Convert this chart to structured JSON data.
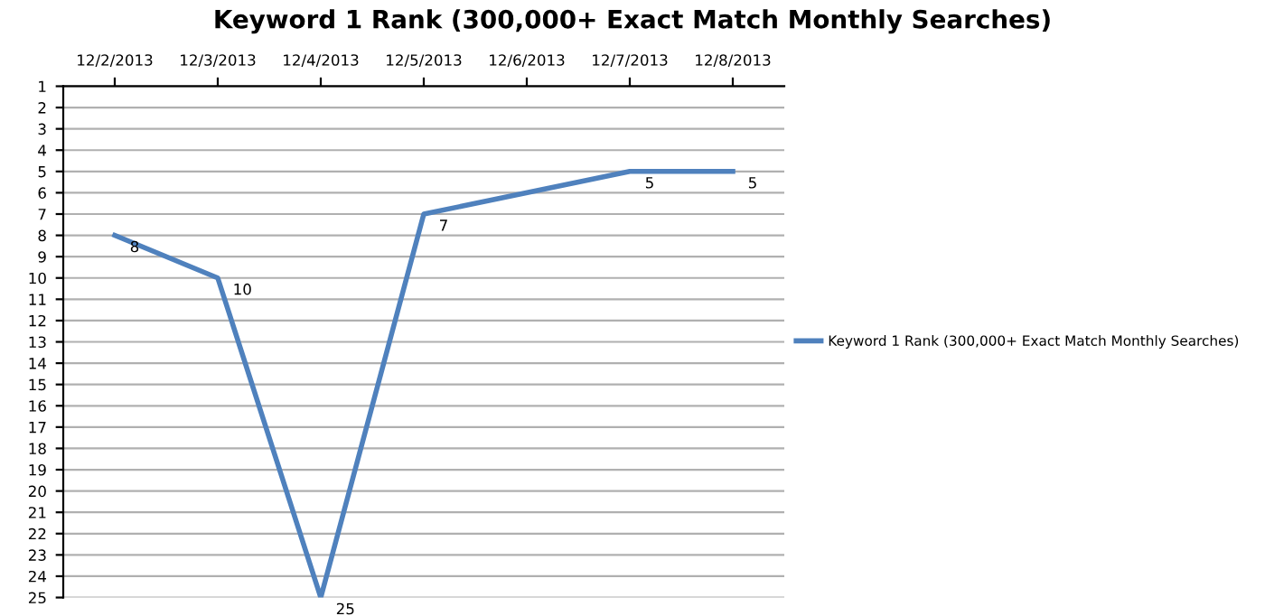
{
  "chart_data": {
    "type": "line",
    "title": "Keyword 1 Rank (300,000+ Exact Match Monthly Searches)",
    "categories": [
      "12/2/2013",
      "12/3/2013",
      "12/4/2013",
      "12/5/2013",
      "12/6/2013",
      "12/7/2013",
      "12/8/2013"
    ],
    "series": [
      {
        "name": "Keyword 1 Rank (300,000+ Exact Match Monthly Searches)",
        "color": "#4f81bd",
        "values": [
          8,
          10,
          25,
          7,
          null,
          5,
          5
        ]
      }
    ],
    "ylim": [
      25,
      1
    ],
    "yticks": [
      1,
      2,
      3,
      4,
      5,
      6,
      7,
      8,
      9,
      10,
      11,
      12,
      13,
      14,
      15,
      16,
      17,
      18,
      19,
      20,
      21,
      22,
      23,
      24,
      25
    ],
    "grid": "y",
    "legend": "right",
    "data_labels": true,
    "marker": "none",
    "line_style": "solid"
  }
}
